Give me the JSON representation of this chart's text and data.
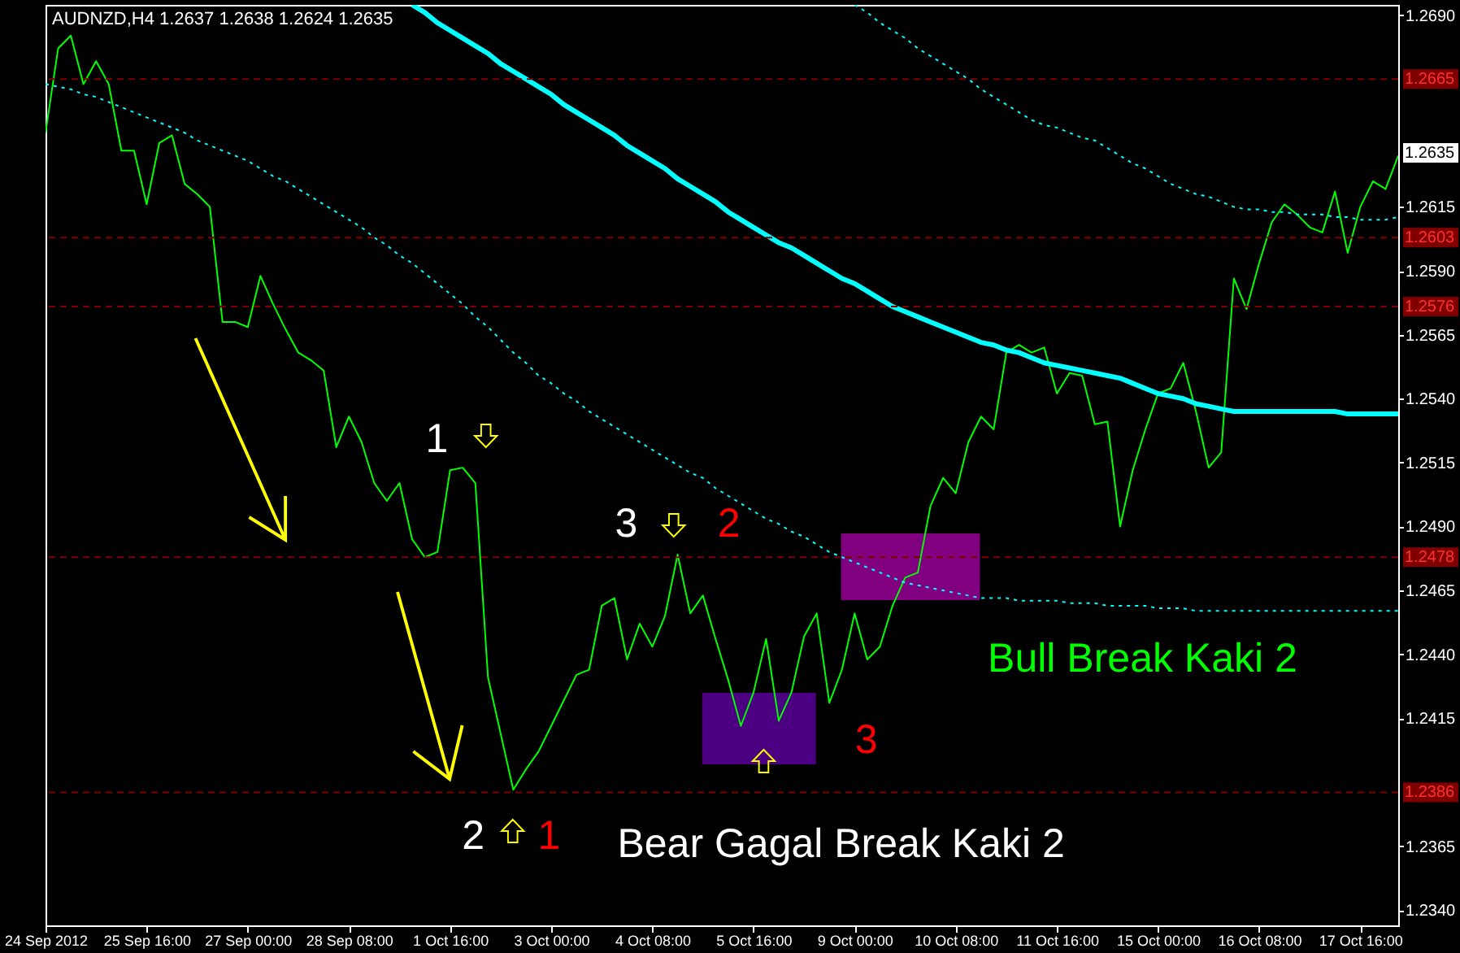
{
  "chart_data": {
    "type": "line",
    "title": "AUDNZD,H4  1.2637 1.2638 1.2624 1.2635",
    "categories": [
      "24 Sep 2012",
      null,
      null,
      null,
      null,
      null,
      null,
      null,
      "25 Sep 16:00",
      null,
      null,
      null,
      null,
      null,
      null,
      null,
      "27 Sep 00:00",
      null,
      null,
      null,
      null,
      null,
      null,
      null,
      "28 Sep 08:00",
      null,
      null,
      null,
      null,
      null,
      null,
      null,
      "1 Oct 16:00",
      null,
      null,
      null,
      null,
      null,
      null,
      null,
      "3 Oct 00:00",
      null,
      null,
      null,
      null,
      null,
      null,
      null,
      "4 Oct 08:00",
      null,
      null,
      null,
      null,
      null,
      null,
      null,
      "5 Oct 16:00",
      null,
      null,
      null,
      null,
      null,
      null,
      null,
      "9 Oct 00:00",
      null,
      null,
      null,
      null,
      null,
      null,
      null,
      "10 Oct 08:00",
      null,
      null,
      null,
      null,
      null,
      null,
      null,
      "11 Oct 16:00",
      null,
      null,
      null,
      null,
      null,
      null,
      null,
      "15 Oct 00:00",
      null,
      null,
      null,
      null,
      null,
      null,
      null,
      "16 Oct 08:00",
      null,
      null,
      null,
      null,
      null,
      null,
      null,
      "17 Oct 16:00",
      null,
      null,
      null
    ],
    "ylim": [
      1.2334,
      1.2694
    ],
    "yticks": [
      {
        "value": 1.269,
        "label": "1.2690"
      },
      {
        "value": 1.2615,
        "label": "1.2615"
      },
      {
        "value": 1.259,
        "label": "1.2590"
      },
      {
        "value": 1.2565,
        "label": "1.2565"
      },
      {
        "value": 1.254,
        "label": "1.2540"
      },
      {
        "value": 1.2515,
        "label": "1.2515"
      },
      {
        "value": 1.249,
        "label": "1.2490"
      },
      {
        "value": 1.2465,
        "label": "1.2465"
      },
      {
        "value": 1.244,
        "label": "1.2440"
      },
      {
        "value": 1.2415,
        "label": "1.2415"
      },
      {
        "value": 1.2365,
        "label": "1.2365"
      },
      {
        "value": 1.234,
        "label": "1.2340"
      }
    ],
    "series": [
      {
        "color": "#00ff00",
        "line_style": "solid",
        "values": [
          1.2644,
          1.2677,
          1.2682,
          1.2663,
          1.2672,
          1.2663,
          1.2637,
          1.2637,
          1.2616,
          1.264,
          1.2643,
          1.2624,
          1.262,
          1.2615,
          1.257,
          1.257,
          1.2568,
          1.2588,
          1.2577,
          1.2567,
          1.2558,
          1.2555,
          1.2551,
          1.2521,
          1.2533,
          1.2523,
          1.2507,
          1.25,
          1.2507,
          1.2485,
          1.2478,
          1.248,
          1.2512,
          1.2513,
          1.2507,
          1.2431,
          1.2409,
          1.2387,
          1.2395,
          1.2402,
          1.2412,
          1.2422,
          1.2432,
          1.2434,
          1.2459,
          1.2462,
          1.2438,
          1.2452,
          1.2443,
          1.2455,
          1.2479,
          1.2456,
          1.2463,
          1.2446,
          1.243,
          1.2412,
          1.2425,
          1.2446,
          1.2414,
          1.2425,
          1.2447,
          1.2456,
          1.2421,
          1.2434,
          1.2456,
          1.2438,
          1.2443,
          1.2459,
          1.247,
          1.2472,
          1.2498,
          1.2509,
          1.2503,
          1.2523,
          1.2533,
          1.2528,
          1.2558,
          1.2561,
          1.2558,
          1.256,
          1.2542,
          1.255,
          1.2549,
          1.253,
          1.2531,
          1.249,
          1.2512,
          1.2528,
          1.2542,
          1.2544,
          1.2554,
          1.2535,
          1.2513,
          1.2519,
          1.2587,
          1.2575,
          1.2593,
          1.2609,
          1.2616,
          1.2612,
          1.2607,
          1.2605,
          1.2621,
          1.2597,
          1.2615,
          1.2625,
          1.2622,
          1.2635
        ]
      },
      {
        "color": "#00ffff",
        "line_style": "solid",
        "values": [
          null,
          null,
          null,
          null,
          null,
          null,
          null,
          null,
          null,
          null,
          null,
          null,
          null,
          null,
          null,
          null,
          null,
          null,
          null,
          null,
          null,
          null,
          null,
          null,
          null,
          null,
          null,
          null,
          null,
          1.2694,
          1.2691,
          1.2687,
          1.2684,
          1.2681,
          1.2678,
          1.2675,
          1.2671,
          1.2668,
          1.2665,
          1.2662,
          1.2659,
          1.2655,
          1.2652,
          1.2649,
          1.2646,
          1.2643,
          1.2639,
          1.2636,
          1.2633,
          1.263,
          1.2626,
          1.2623,
          1.262,
          1.2617,
          1.2613,
          1.261,
          1.2607,
          1.2604,
          1.2601,
          1.2599,
          1.2596,
          1.2593,
          1.259,
          1.2587,
          1.2585,
          1.2582,
          1.2579,
          1.2576,
          1.2574,
          1.2572,
          1.257,
          1.2568,
          1.2566,
          1.2564,
          1.2562,
          1.2561,
          1.2559,
          1.2558,
          1.2556,
          1.2554,
          1.2553,
          1.2552,
          1.2551,
          1.255,
          1.2549,
          1.2548,
          1.2546,
          1.2544,
          1.2542,
          1.2541,
          1.254,
          1.2538,
          1.2537,
          1.2536,
          1.2535,
          1.2535,
          1.2535,
          1.2535,
          1.2535,
          1.2535,
          1.2535,
          1.2535,
          1.2535,
          1.2534,
          1.2534,
          1.2534,
          1.2534,
          1.2534
        ]
      },
      {
        "color": "#00ffff",
        "line_style": "dotted",
        "values": [
          1.2663,
          1.2662,
          1.2661,
          1.2659,
          1.2658,
          1.2656,
          1.2654,
          1.2652,
          1.265,
          1.2648,
          1.2646,
          1.2644,
          1.2641,
          1.2639,
          1.2637,
          1.2635,
          1.2633,
          1.263,
          1.2627,
          1.2625,
          1.2622,
          1.2619,
          1.2616,
          1.2613,
          1.261,
          1.2607,
          1.2603,
          1.26,
          1.2596,
          1.2593,
          1.2589,
          1.2585,
          1.2581,
          1.2577,
          1.2572,
          1.2568,
          1.2563,
          1.2558,
          1.2554,
          1.2549,
          1.2546,
          1.2542,
          1.2539,
          1.2535,
          1.2532,
          1.2529,
          1.2526,
          1.2523,
          1.252,
          1.2517,
          1.2514,
          1.2511,
          1.2509,
          1.2505,
          1.2502,
          1.2499,
          1.2496,
          1.2493,
          1.2491,
          1.2488,
          1.2486,
          1.2483,
          1.248,
          1.2478,
          1.2476,
          1.2474,
          1.2472,
          1.247,
          1.2468,
          1.2467,
          1.2466,
          1.2465,
          1.2464,
          1.2463,
          1.2462,
          1.2462,
          1.2462,
          1.2461,
          1.2461,
          1.2461,
          1.2461,
          1.246,
          1.246,
          1.246,
          1.2459,
          1.2459,
          1.2459,
          1.2459,
          1.2458,
          1.2458,
          1.2458,
          1.2457,
          1.2457,
          1.2457,
          1.2457,
          1.2457,
          1.2457,
          1.2457,
          1.2457,
          1.2457,
          1.2457,
          1.2457,
          1.2457,
          1.2457,
          1.2457,
          1.2457,
          1.2457,
          1.2457
        ]
      },
      {
        "color": "#00ffff",
        "line_style": "dotted",
        "values": [
          null,
          null,
          null,
          null,
          null,
          null,
          null,
          null,
          null,
          null,
          null,
          null,
          null,
          null,
          null,
          null,
          null,
          null,
          null,
          null,
          null,
          null,
          null,
          null,
          null,
          null,
          null,
          null,
          null,
          null,
          null,
          null,
          null,
          null,
          null,
          null,
          null,
          null,
          null,
          null,
          null,
          null,
          null,
          null,
          null,
          null,
          null,
          null,
          null,
          null,
          null,
          null,
          null,
          null,
          null,
          null,
          null,
          null,
          null,
          null,
          null,
          null,
          null,
          null,
          1.2694,
          1.2691,
          1.2687,
          1.2684,
          1.2681,
          1.2677,
          1.2674,
          1.2671,
          1.2668,
          1.2665,
          1.2661,
          1.2658,
          1.2655,
          1.2652,
          1.2649,
          1.2647,
          1.2646,
          1.2644,
          1.2642,
          1.2641,
          1.2638,
          1.2635,
          1.2632,
          1.263,
          1.2627,
          1.2624,
          1.2622,
          1.262,
          1.2619,
          1.2617,
          1.2615,
          1.2614,
          1.2614,
          1.2613,
          1.2613,
          1.2612,
          1.2612,
          1.2612,
          1.2611,
          1.2611,
          1.261,
          1.261,
          1.261,
          1.2611
        ]
      }
    ],
    "ref_lines": [
      {
        "axis": "y",
        "value": 1.2665,
        "label": "1.2665",
        "color": "#800000",
        "line_style": "dashed"
      },
      {
        "axis": "y",
        "value": 1.2603,
        "label": "1.2603",
        "color": "#800000",
        "line_style": "dashed"
      },
      {
        "axis": "y",
        "value": 1.2576,
        "label": "1.2576",
        "color": "#800000",
        "line_style": "dashed"
      },
      {
        "axis": "y",
        "value": 1.2478,
        "label": "1.2478",
        "color": "#800000",
        "line_style": "dashed"
      },
      {
        "axis": "y",
        "value": 1.2386,
        "label": "1.2386",
        "color": "#800000",
        "line_style": "dashed"
      }
    ],
    "annotations": [
      "1.2635",
      "1",
      "2",
      "1",
      "3",
      "2",
      "3",
      "Bull Break Kaki 2",
      "Bear Gagal Break Kaki 2"
    ],
    "marker": "none"
  }
}
